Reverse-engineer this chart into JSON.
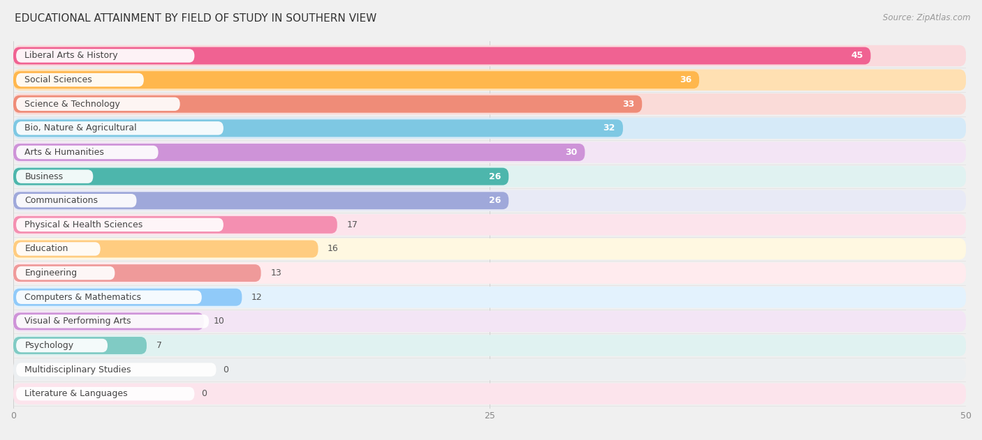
{
  "title": "EDUCATIONAL ATTAINMENT BY FIELD OF STUDY IN SOUTHERN VIEW",
  "source": "Source: ZipAtlas.com",
  "categories": [
    "Liberal Arts & History",
    "Social Sciences",
    "Science & Technology",
    "Bio, Nature & Agricultural",
    "Arts & Humanities",
    "Business",
    "Communications",
    "Physical & Health Sciences",
    "Education",
    "Engineering",
    "Computers & Mathematics",
    "Visual & Performing Arts",
    "Psychology",
    "Multidisciplinary Studies",
    "Literature & Languages"
  ],
  "values": [
    45,
    36,
    33,
    32,
    30,
    26,
    26,
    17,
    16,
    13,
    12,
    10,
    7,
    0,
    0
  ],
  "bar_colors": [
    "#F06292",
    "#FFB74D",
    "#EF8C78",
    "#7EC8E3",
    "#CE93D8",
    "#4DB6AC",
    "#9FA8DA",
    "#F48FB1",
    "#FFCC80",
    "#EF9A9A",
    "#90CAF9",
    "#CE93D8",
    "#80CBC4",
    "#B0BEC5",
    "#F48FB1"
  ],
  "bar_bg_colors": [
    "#FADADD",
    "#FFE0B2",
    "#FADBD8",
    "#D6EAF8",
    "#F3E5F5",
    "#E0F2F1",
    "#E8EAF6",
    "#FCE4EC",
    "#FFF8E1",
    "#FFEBEE",
    "#E3F2FD",
    "#F3E5F5",
    "#E0F2F1",
    "#ECEFF1",
    "#FCE4EC"
  ],
  "xlim": [
    0,
    50
  ],
  "xticks": [
    0,
    25,
    50
  ],
  "label_color_threshold": 25,
  "bg_color": "#f0f0f0",
  "row_bg_color": "#f7f7f7",
  "pill_color": "#ffffff",
  "title_fontsize": 11,
  "label_fontsize": 9,
  "value_fontsize": 9,
  "source_fontsize": 8.5
}
